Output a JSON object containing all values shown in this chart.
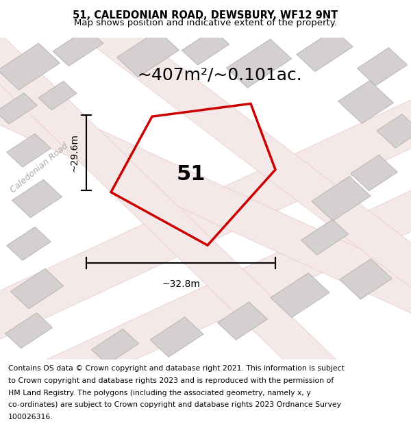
{
  "title_line1": "51, CALEDONIAN ROAD, DEWSBURY, WF12 9NT",
  "title_line2": "Map shows position and indicative extent of the property.",
  "area_text": "~407m²/~0.101ac.",
  "width_label": "~32.8m",
  "height_label": "~29.6m",
  "number_label": "51",
  "road_label": "Caledonian Road",
  "footer_lines": [
    "Contains OS data © Crown copyright and database right 2021. This information is subject",
    "to Crown copyright and database rights 2023 and is reproduced with the permission of",
    "HM Land Registry. The polygons (including the associated geometry, namely x, y",
    "co-ordinates) are subject to Crown copyright and database rights 2023 Ordnance Survey",
    "100026316."
  ],
  "map_bg_color": "#ede8e8",
  "building_color": "#d4d0d0",
  "building_edge_color": "#b8b4b4",
  "road_fill_color": "#f5e8e8",
  "road_edge_color": "#e8c8c8",
  "plot_color": "#cc0000",
  "title_fontsize": 10.5,
  "subtitle_fontsize": 9.5,
  "area_fontsize": 18,
  "number_fontsize": 22,
  "dim_fontsize": 10,
  "road_label_fontsize": 9,
  "footer_fontsize": 7.8,
  "title_bg": "#ffffff",
  "footer_bg": "#ffffff"
}
